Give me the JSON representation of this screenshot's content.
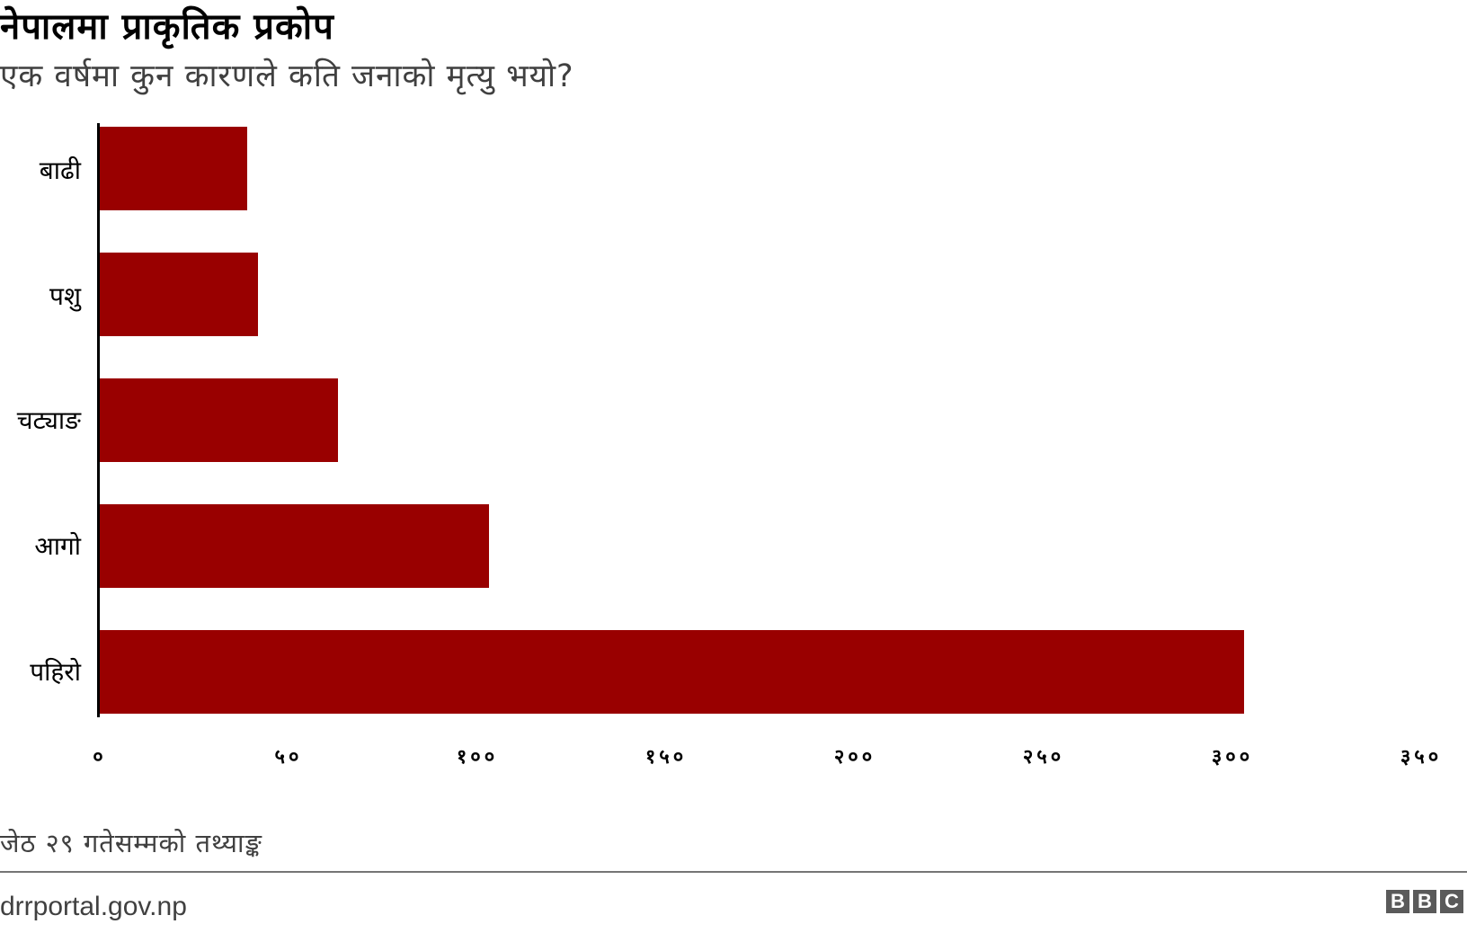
{
  "header": {
    "title": "नेपालमा प्राकृतिक प्रकोप",
    "subtitle": "एक वर्षमा कुन कारणले कति जनाको मृत्यु भयो?"
  },
  "colors": {
    "bar": "#990000",
    "axis": "#000000",
    "divider": "#757575",
    "logo_bg": "#5a5a5a"
  },
  "chart_data": {
    "type": "bar",
    "orientation": "horizontal",
    "title": "नेपालमा प्राकृतिक प्रकोप",
    "subtitle": "एक वर्षमा कुन कारणले कति जनाको मृत्यु भयो?",
    "categories": [
      "बाढी",
      "पशु",
      "चट्याङ",
      "आगो",
      "पहिरो"
    ],
    "values": [
      39,
      42,
      63,
      103,
      303
    ],
    "xlabel": "",
    "ylabel": "",
    "xlim": [
      0,
      350
    ],
    "ticks": [
      0,
      50,
      100,
      150,
      200,
      250,
      300,
      350
    ],
    "tick_labels": [
      "०",
      "५०",
      "१००",
      "१५०",
      "२००",
      "२५०",
      "३००",
      "३५०"
    ],
    "grid": false,
    "legend": null,
    "note": "जेठ २९ गतेसम्मको तथ्याङ्क",
    "source": "drrportal.gov.np"
  },
  "footer": {
    "note": "जेठ २९ गतेसम्मको तथ्याङ्क",
    "source": "drrportal.gov.np",
    "logo_letters": [
      "B",
      "B",
      "C"
    ]
  }
}
